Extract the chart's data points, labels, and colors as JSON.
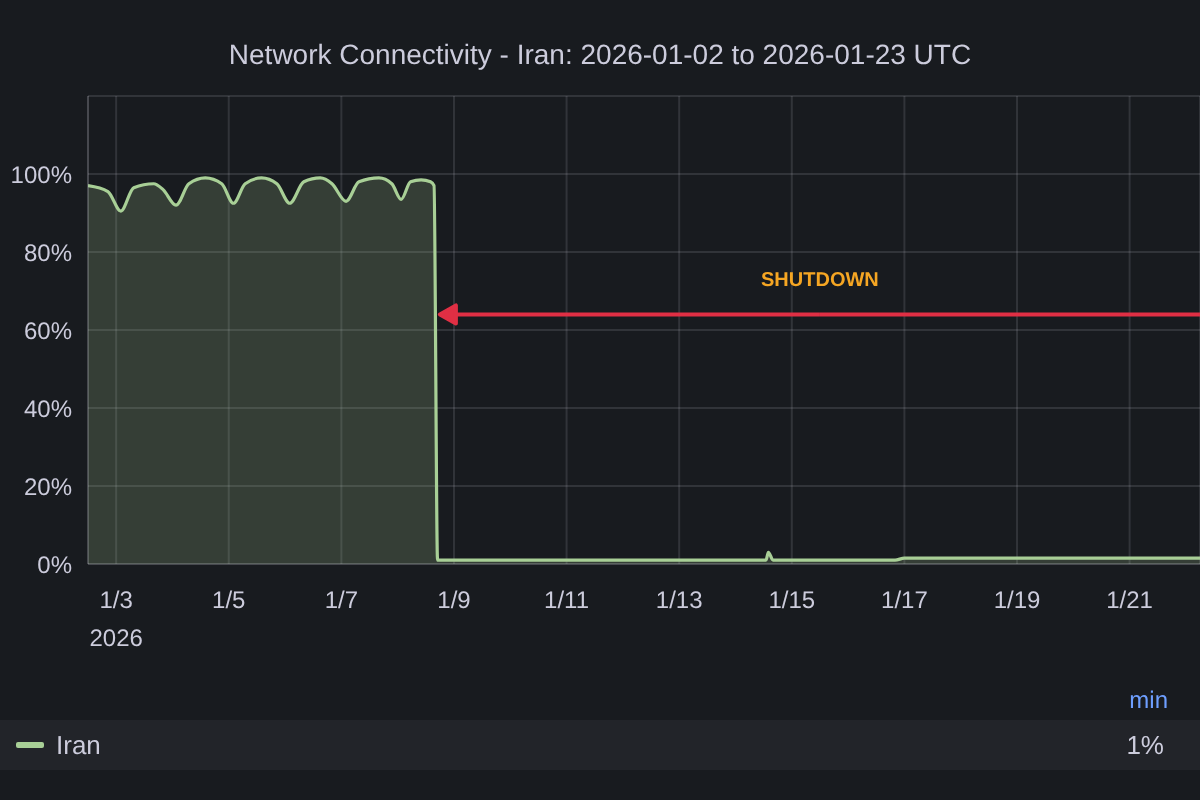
{
  "chart_data": {
    "type": "area",
    "title": "Network Connectivity - Iran: 2026-01-02 to 2026-01-23 UTC",
    "x": [
      "2026-01-02T12:00",
      "2026-01-02T20:30",
      "2026-01-03T02:00",
      "2026-01-03T07:30",
      "2026-01-03T16:00",
      "2026-01-03T20:00",
      "2026-01-04T01:30",
      "2026-01-04T07:00",
      "2026-01-04T14:00",
      "2026-01-04T21:00",
      "2026-01-05T02:00",
      "2026-01-05T07:00",
      "2026-01-05T14:00",
      "2026-01-05T20:30",
      "2026-01-06T02:00",
      "2026-01-06T08:00",
      "2026-01-06T15:00",
      "2026-01-06T20:00",
      "2026-01-07T02:00",
      "2026-01-07T07:30",
      "2026-01-07T16:00",
      "2026-01-07T21:30",
      "2026-01-08T01:30",
      "2026-01-08T05:30",
      "2026-01-08T10:00",
      "2026-01-08T14:00",
      "2026-01-08T15:30",
      "2026-01-08T17:00",
      "2026-01-10T02:00",
      "2026-01-14T13:00",
      "2026-01-14T14:00",
      "2026-01-14T16:00",
      "2026-01-16T20:00",
      "2026-01-17T00:00",
      "2026-01-22T06:00"
    ],
    "series": [
      {
        "name": "Iran",
        "color": "#a8cf96",
        "values": [
          97,
          95.5,
          90.5,
          96.5,
          97.5,
          96,
          92,
          97.5,
          99,
          97.5,
          92.5,
          97.5,
          99,
          97.5,
          92.5,
          98,
          99,
          97.5,
          93,
          98,
          99,
          97.5,
          93.5,
          98,
          98.5,
          98,
          97,
          1,
          1,
          1,
          3,
          1,
          1,
          1.5,
          1.5
        ]
      }
    ],
    "xlim": [
      "2026-01-02T12:00",
      "2026-01-22T06:00"
    ],
    "xticks": [
      {
        "value": "2026-01-03",
        "label": "1/3\n2026"
      },
      {
        "value": "2026-01-05",
        "label": "1/5"
      },
      {
        "value": "2026-01-07",
        "label": "1/7"
      },
      {
        "value": "2026-01-09",
        "label": "1/9"
      },
      {
        "value": "2026-01-11",
        "label": "1/11"
      },
      {
        "value": "2026-01-13",
        "label": "1/13"
      },
      {
        "value": "2026-01-15",
        "label": "1/15"
      },
      {
        "value": "2026-01-17",
        "label": "1/17"
      },
      {
        "value": "2026-01-19",
        "label": "1/19"
      },
      {
        "value": "2026-01-21",
        "label": "1/21"
      }
    ],
    "ylim": [
      0,
      120
    ],
    "yticks": [
      {
        "value": 0,
        "label": "0%"
      },
      {
        "value": 20,
        "label": "20%"
      },
      {
        "value": 40,
        "label": "40%"
      },
      {
        "value": 60,
        "label": "60%"
      },
      {
        "value": 80,
        "label": "80%"
      },
      {
        "value": 100,
        "label": "100%"
      },
      {
        "value": 120,
        "label": null
      }
    ],
    "grid": true,
    "legend": "bottom",
    "annotations": [
      {
        "text": "SHUTDOWN",
        "x": "2026-01-08T18:00",
        "y": 64
      },
      "min",
      "1%"
    ]
  }
}
